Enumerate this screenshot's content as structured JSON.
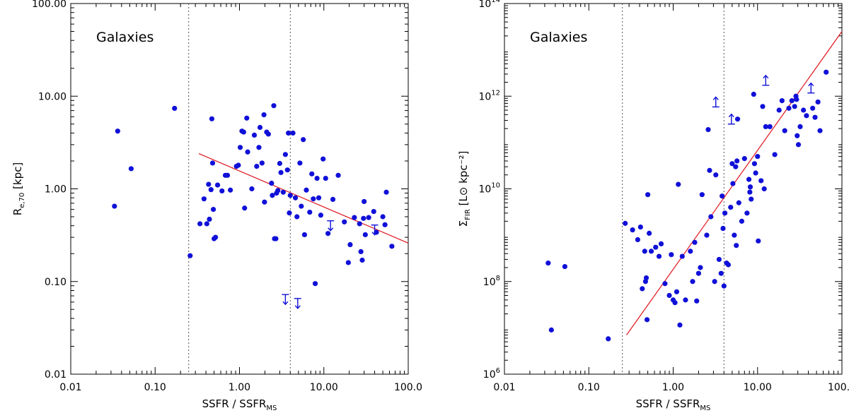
{
  "colors": {
    "point": "#1010d8",
    "fit": "#e0141e",
    "guide": "#555555"
  },
  "chart_data": [
    {
      "type": "scatter",
      "title": "",
      "annotation": "Galaxies",
      "xlabel": "SSFR / SSFR",
      "xlabel_sub": "MS",
      "ylabel": "R",
      "ylabel_sub": "e,70",
      "ylabel_unit": "[kpc]",
      "xscale": "log",
      "yscale": "log",
      "xlim": [
        0.01,
        100
      ],
      "ylim": [
        0.01,
        100
      ],
      "xticks": [
        0.01,
        0.1,
        1,
        10,
        100
      ],
      "xtick_labels": [
        "0.01",
        "0.10",
        "1.00",
        "10.00",
        "100.0"
      ],
      "yticks": [
        0.01,
        0.1,
        1,
        10,
        100
      ],
      "ytick_labels": [
        "0.01",
        "0.10",
        "1.00",
        "10.00",
        "100.00"
      ],
      "vlines": [
        0.25,
        4.0
      ],
      "fit_line": [
        [
          0.33,
          2.4
        ],
        [
          100,
          0.26
        ]
      ],
      "points": [
        [
          0.033,
          0.65
        ],
        [
          0.036,
          4.2
        ],
        [
          0.052,
          1.65
        ],
        [
          0.17,
          7.4
        ],
        [
          0.26,
          0.19
        ],
        [
          0.34,
          0.42
        ],
        [
          0.38,
          0.78
        ],
        [
          0.41,
          0.42
        ],
        [
          0.43,
          1.12
        ],
        [
          0.44,
          0.47
        ],
        [
          0.46,
          0.98
        ],
        [
          0.47,
          5.7
        ],
        [
          0.48,
          1.9
        ],
        [
          0.49,
          0.6
        ],
        [
          0.5,
          0.29
        ],
        [
          0.52,
          0.3
        ],
        [
          0.55,
          1.1
        ],
        [
          0.62,
          0.95
        ],
        [
          0.68,
          1.4
        ],
        [
          0.72,
          1.4
        ],
        [
          0.78,
          0.97
        ],
        [
          0.92,
          1.75
        ],
        [
          0.97,
          1.8
        ],
        [
          1.02,
          2.8
        ],
        [
          1.07,
          4.2
        ],
        [
          1.12,
          4.1
        ],
        [
          1.15,
          0.62
        ],
        [
          1.22,
          5.8
        ],
        [
          1.25,
          2.5
        ],
        [
          1.4,
          1.0
        ],
        [
          1.5,
          3.8
        ],
        [
          1.6,
          1.75
        ],
        [
          1.7,
          2.8
        ],
        [
          1.75,
          4.6
        ],
        [
          1.85,
          1.9
        ],
        [
          1.95,
          6.3
        ],
        [
          1.98,
          0.72
        ],
        [
          2.1,
          4.1
        ],
        [
          2.2,
          3.9
        ],
        [
          2.4,
          1.15
        ],
        [
          2.45,
          0.85
        ],
        [
          2.55,
          7.9
        ],
        [
          2.6,
          0.29
        ],
        [
          2.7,
          0.29
        ],
        [
          2.75,
          0.9
        ],
        [
          2.85,
          0.96
        ],
        [
          3.0,
          1.88
        ],
        [
          3.1,
          1.5
        ],
        [
          3.3,
          0.92
        ],
        [
          3.5,
          2.35
        ],
        [
          3.7,
          1.6
        ],
        [
          3.8,
          4.0
        ],
        [
          3.9,
          0.55
        ],
        [
          4.0,
          0.85
        ],
        [
          4.3,
          4.0
        ],
        [
          4.6,
          0.8
        ],
        [
          4.8,
          0.5
        ],
        [
          5.2,
          1.9
        ],
        [
          5.4,
          0.65
        ],
        [
          5.7,
          3.4
        ],
        [
          5.9,
          0.32
        ],
        [
          6.2,
          0.97
        ],
        [
          6.8,
          0.56
        ],
        [
          7.2,
          1.45
        ],
        [
          7.5,
          0.78
        ],
        [
          7.9,
          0.095
        ],
        [
          8.3,
          1.3
        ],
        [
          8.7,
          0.8
        ],
        [
          9.2,
          0.52
        ],
        [
          9.8,
          2.1
        ],
        [
          10.5,
          1.3
        ],
        [
          11.2,
          0.33
        ],
        [
          12.8,
          0.77
        ],
        [
          14.8,
          1.4
        ],
        [
          17.5,
          0.44
        ],
        [
          19.5,
          0.16
        ],
        [
          20.5,
          0.25
        ],
        [
          23.0,
          0.49
        ],
        [
          26.5,
          0.42
        ],
        [
          27.5,
          0.21
        ],
        [
          28.5,
          0.17
        ],
        [
          29.5,
          0.48
        ],
        [
          30.0,
          0.73
        ],
        [
          31.0,
          0.32
        ],
        [
          34.0,
          0.49
        ],
        [
          39.0,
          0.57
        ],
        [
          42.0,
          0.34
        ],
        [
          50.0,
          0.5
        ],
        [
          55.0,
          0.92
        ],
        [
          53.0,
          0.41
        ],
        [
          64.0,
          0.24
        ]
      ],
      "upper_limits": [
        [
          12.0,
          0.4
        ],
        [
          40.0,
          0.36
        ],
        [
          3.5,
          0.064
        ],
        [
          4.9,
          0.058
        ]
      ],
      "lower_limits": []
    },
    {
      "type": "scatter",
      "title": "",
      "annotation": "Galaxies",
      "xlabel": "SSFR / SSFR",
      "xlabel_sub": "MS",
      "ylabel": "Σ",
      "ylabel_sub": "FIR",
      "ylabel_unit": "[L⊙ kpc⁻²]",
      "xscale": "log",
      "yscale": "log",
      "xlim": [
        0.01,
        100
      ],
      "ylim": [
        1000000.0,
        100000000000000.0
      ],
      "xticks": [
        0.01,
        0.1,
        1,
        10,
        100
      ],
      "xtick_labels": [
        "0.01",
        "0.10",
        "1.00",
        "10.00",
        "100.0"
      ],
      "yticks": [
        1000000.0,
        100000000.0,
        10000000000.0,
        1000000000000.0,
        100000000000000.0
      ],
      "ytick_labels": [
        "10^6",
        "10^8",
        "10^10",
        "10^12",
        "10^14"
      ],
      "vlines": [
        0.25,
        4.0
      ],
      "fit_line": [
        [
          0.28,
          7000000.0
        ],
        [
          100,
          25000000000000.0
        ]
      ],
      "points": [
        [
          0.033,
          250000000.0
        ],
        [
          0.036,
          9000000.0
        ],
        [
          0.052,
          210000000.0
        ],
        [
          0.17,
          5800000.0
        ],
        [
          0.27,
          1800000000.0
        ],
        [
          0.33,
          1300000000.0
        ],
        [
          0.38,
          800000000.0
        ],
        [
          0.41,
          1500000000.0
        ],
        [
          0.43,
          70000000.0
        ],
        [
          0.46,
          450000000.0
        ],
        [
          0.47,
          100000000.0
        ],
        [
          0.48,
          120000000.0
        ],
        [
          0.49,
          15000000.0
        ],
        [
          0.5,
          7500000000.0
        ],
        [
          0.52,
          1100000000.0
        ],
        [
          0.55,
          450000000.0
        ],
        [
          0.62,
          550000000.0
        ],
        [
          0.68,
          350000000.0
        ],
        [
          0.72,
          650000000.0
        ],
        [
          0.8,
          90000000.0
        ],
        [
          0.9,
          50000000.0
        ],
        [
          0.95,
          380000000.0
        ],
        [
          1.0,
          40000000.0
        ],
        [
          1.05,
          35000000.0
        ],
        [
          1.1,
          60000000.0
        ],
        [
          1.15,
          12500000000.0
        ],
        [
          1.2,
          11500000.0
        ],
        [
          1.28,
          350000000.0
        ],
        [
          1.4,
          40000000.0
        ],
        [
          1.6,
          450000000.0
        ],
        [
          1.7,
          100000000.0
        ],
        [
          1.8,
          700000000.0
        ],
        [
          1.9,
          38000000.0
        ],
        [
          2.0,
          150000000.0
        ],
        [
          2.1,
          200000000.0
        ],
        [
          2.2,
          7500000000.0
        ],
        [
          2.5,
          1000000000.0
        ],
        [
          2.6,
          190000000000.0
        ],
        [
          2.7,
          25000000000.0
        ],
        [
          2.8,
          2500000000.0
        ],
        [
          3.1,
          100000000.0
        ],
        [
          3.2,
          20000000000.0
        ],
        [
          3.5,
          300000000.0
        ],
        [
          3.7,
          150000000.0
        ],
        [
          3.8,
          7000000000.0
        ],
        [
          3.9,
          1400000000.0
        ],
        [
          4.0,
          80000000.0
        ],
        [
          4.1,
          3000000000.0
        ],
        [
          4.3,
          250000000.0
        ],
        [
          4.5,
          230000000.0
        ],
        [
          4.8,
          4000000000.0
        ],
        [
          5.0,
          35000000000.0
        ],
        [
          5.1,
          13000000000.0
        ],
        [
          5.3,
          1000000000.0
        ],
        [
          5.5,
          30000000000.0
        ],
        [
          5.6,
          600000000.0
        ],
        [
          5.7,
          40000000000.0
        ],
        [
          5.8,
          320000000000.0
        ],
        [
          6.0,
          5000000000.0
        ],
        [
          6.5,
          2000000000.0
        ],
        [
          7.0,
          45000000000.0
        ],
        [
          7.5,
          3000000000.0
        ],
        [
          7.9,
          16000000000.0
        ],
        [
          8.1,
          8500000000.0
        ],
        [
          8.2,
          11000000000.0
        ],
        [
          8.4,
          6000000000.0
        ],
        [
          9.0,
          1100000000000.0
        ],
        [
          9.2,
          35000000000.0
        ],
        [
          9.5,
          22000000000.0
        ],
        [
          10.0,
          50000000000.0
        ],
        [
          10.2,
          750000000.0
        ],
        [
          11.0,
          15000000000.0
        ],
        [
          11.5,
          600000000000.0
        ],
        [
          12.0,
          10000000000.0
        ],
        [
          12.5,
          220000000000.0
        ],
        [
          14.0,
          220000000000.0
        ],
        [
          16.0,
          55000000000.0
        ],
        [
          18.0,
          500000000000.0
        ],
        [
          19.5,
          800000000000.0
        ],
        [
          21.0,
          180000000000.0
        ],
        [
          23.5,
          550000000000.0
        ],
        [
          25.5,
          800000000000.0
        ],
        [
          27.5,
          600000000000.0
        ],
        [
          28.5,
          1000000000000.0
        ],
        [
          29.0,
          850000000000.0
        ],
        [
          29.5,
          140000000000.0
        ],
        [
          30.5,
          90000000000.0
        ],
        [
          32.0,
          220000000000.0
        ],
        [
          35.0,
          500000000000.0
        ],
        [
          38.0,
          380000000000.0
        ],
        [
          45.0,
          550000000000.0
        ],
        [
          48.0,
          350000000000.0
        ],
        [
          52.0,
          750000000000.0
        ],
        [
          55.0,
          180000000000.0
        ],
        [
          65.0,
          3300000000000.0
        ]
      ],
      "upper_limits": [],
      "lower_limits": [
        [
          3.2,
          750000000000.0
        ],
        [
          4.9,
          320000000000.0
        ],
        [
          12.5,
          2200000000000.0
        ],
        [
          43.0,
          1500000000000.0
        ]
      ]
    }
  ]
}
